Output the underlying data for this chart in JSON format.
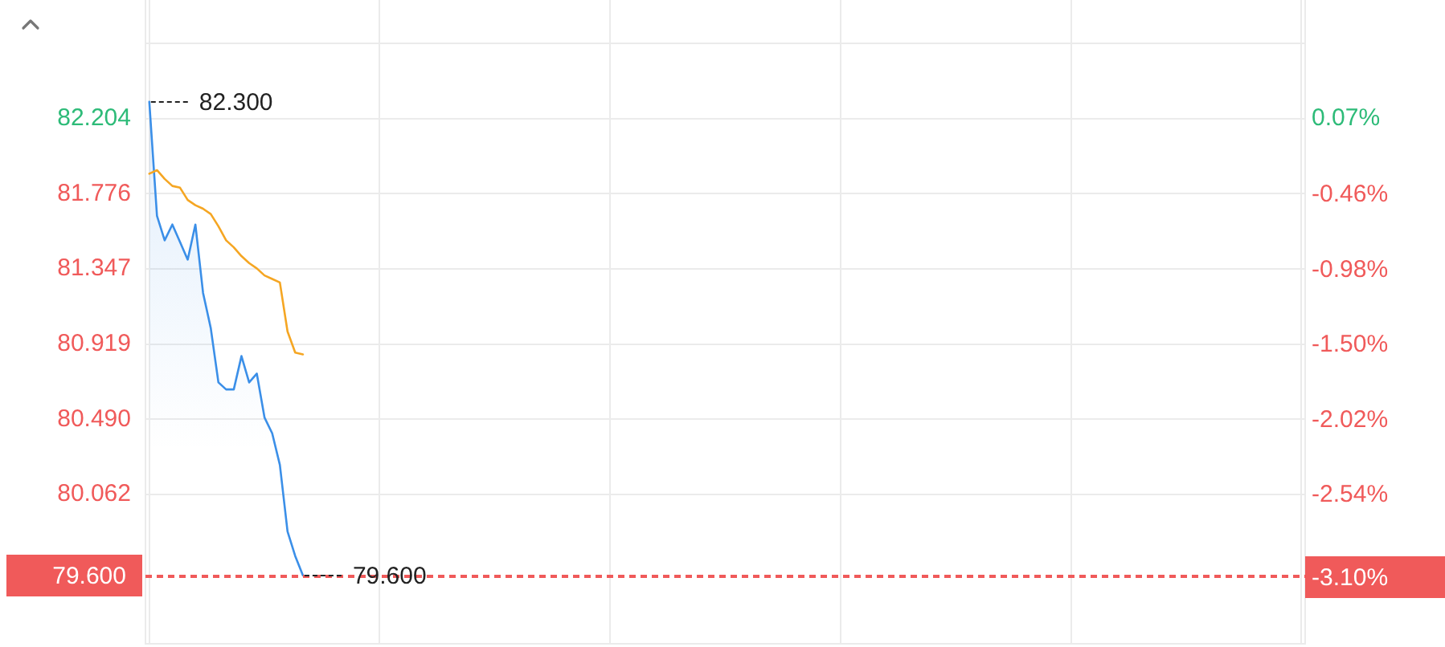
{
  "chart_data": {
    "type": "line",
    "categories": [
      null,
      null,
      null,
      null,
      null,
      null,
      null,
      null,
      null,
      null,
      null,
      null,
      null,
      null,
      null,
      null,
      null,
      null,
      null,
      null,
      null,
      null,
      null,
      null,
      null,
      null,
      null,
      null,
      null,
      null,
      null,
      null,
      null,
      null,
      null,
      null,
      null,
      null,
      null,
      null,
      null,
      null,
      null,
      null,
      null,
      null,
      null,
      null,
      null,
      null,
      null,
      null,
      null,
      null,
      null,
      null,
      null,
      null,
      null,
      null,
      null,
      null,
      null,
      null,
      null,
      null,
      null,
      null,
      null,
      null,
      null,
      null,
      null,
      null,
      null,
      null,
      null,
      null,
      null,
      null,
      null,
      null,
      null,
      null,
      null,
      null,
      null,
      null,
      null,
      null,
      null,
      null,
      null,
      null,
      null,
      null,
      null,
      null,
      null,
      null,
      null,
      null,
      null,
      null,
      null,
      null,
      null,
      null,
      null,
      null,
      null,
      null,
      null,
      null,
      null,
      null,
      null,
      null,
      null,
      null,
      null,
      null,
      null,
      null,
      null,
      null,
      null,
      null,
      null,
      null,
      null,
      null,
      null,
      null,
      null,
      null,
      null,
      null,
      null,
      null,
      null,
      null,
      null,
      null,
      null,
      null,
      null,
      null,
      null,
      null,
      null
    ],
    "series": [
      {
        "type": "area",
        "color": "#3b8fe8",
        "values": [
          82.3,
          81.65,
          81.51,
          81.6,
          81.5,
          81.4,
          81.6,
          81.21,
          81.01,
          80.7,
          80.66,
          80.66,
          80.85,
          80.7,
          80.75,
          80.5,
          80.41,
          80.23,
          79.85,
          79.71,
          79.6,
          null,
          null,
          null,
          null,
          null,
          null,
          null,
          null,
          null,
          null,
          null,
          null,
          null,
          null,
          null,
          null,
          null,
          null,
          null,
          null,
          null,
          null,
          null,
          null,
          null,
          null,
          null,
          null,
          null,
          null,
          null,
          null,
          null,
          null,
          null,
          null,
          null,
          null,
          null,
          null,
          null,
          null,
          null,
          null,
          null,
          null,
          null,
          null,
          null,
          null,
          null,
          null,
          null,
          null,
          null,
          null,
          null,
          null,
          null,
          null,
          null,
          null,
          null,
          null,
          null,
          null,
          null,
          null,
          null,
          null,
          null,
          null,
          null,
          null,
          null,
          null,
          null,
          null,
          null,
          null,
          null,
          null,
          null,
          null,
          null,
          null,
          null,
          null,
          null,
          null,
          null,
          null,
          null,
          null,
          null,
          null,
          null,
          null,
          null,
          null,
          null,
          null,
          null,
          null,
          null,
          null,
          null,
          null,
          null,
          null,
          null,
          null,
          null,
          null,
          null,
          null,
          null,
          null,
          null,
          null,
          null,
          null,
          null,
          null,
          null,
          null,
          null,
          null,
          null,
          null
        ],
        "value_labels": [
          "82.300",
          null,
          null,
          null,
          null,
          null,
          null,
          null,
          null,
          null,
          null,
          null,
          null,
          null,
          null,
          null,
          null,
          null,
          null,
          null,
          "79.600",
          null,
          null,
          null,
          null,
          null,
          null,
          null,
          null,
          null,
          null,
          null,
          null,
          null,
          null,
          null,
          null,
          null,
          null,
          null,
          null,
          null,
          null,
          null,
          null,
          null,
          null,
          null,
          null,
          null,
          null,
          null,
          null,
          null,
          null,
          null,
          null,
          null,
          null,
          null,
          null,
          null,
          null,
          null,
          null,
          null,
          null,
          null,
          null,
          null,
          null,
          null,
          null,
          null,
          null,
          null,
          null,
          null,
          null,
          null,
          null,
          null,
          null,
          null,
          null,
          null,
          null,
          null,
          null,
          null,
          null,
          null,
          null,
          null,
          null,
          null,
          null,
          null,
          null,
          null,
          null,
          null,
          null,
          null,
          null,
          null,
          null,
          null,
          null,
          null,
          null,
          null,
          null,
          null,
          null,
          null,
          null,
          null,
          null,
          null,
          null,
          null,
          null,
          null,
          null,
          null,
          null,
          null,
          null,
          null,
          null,
          null,
          null,
          null,
          null,
          null,
          null,
          null,
          null,
          null,
          null,
          null,
          null,
          null,
          null,
          null,
          null,
          null,
          null,
          null,
          null
        ]
      },
      {
        "color": "#f5a623",
        "values": [
          81.89,
          81.91,
          81.86,
          81.82,
          81.81,
          81.74,
          81.71,
          81.69,
          81.66,
          81.59,
          81.51,
          81.47,
          81.42,
          81.38,
          81.35,
          81.31,
          81.29,
          81.27,
          80.99,
          80.87,
          80.86,
          null,
          null,
          null,
          null,
          null,
          null,
          null,
          null,
          null,
          null,
          null,
          null,
          null,
          null,
          null,
          null,
          null,
          null,
          null,
          null,
          null,
          null,
          null,
          null,
          null,
          null,
          null,
          null,
          null,
          null,
          null,
          null,
          null,
          null,
          null,
          null,
          null,
          null,
          null,
          null,
          null,
          null,
          null,
          null,
          null,
          null,
          null,
          null,
          null,
          null,
          null,
          null,
          null,
          null,
          null,
          null,
          null,
          null,
          null,
          null,
          null,
          null,
          null,
          null,
          null,
          null,
          null,
          null,
          null,
          null,
          null,
          null,
          null,
          null,
          null,
          null,
          null,
          null,
          null,
          null,
          null,
          null,
          null,
          null,
          null,
          null,
          null,
          null,
          null,
          null,
          null,
          null,
          null,
          null,
          null,
          null,
          null,
          null,
          null,
          null,
          null,
          null,
          null,
          null,
          null,
          null,
          null,
          null,
          null,
          null,
          null,
          null,
          null,
          null,
          null,
          null,
          null,
          null,
          null,
          null,
          null,
          null,
          null,
          null,
          null,
          null,
          null,
          null,
          null,
          null
        ]
      }
    ],
    "ylim": [
      79.21,
      82.88
    ],
    "yticks": [
      {
        "value": 82.633,
        "label": null
      },
      82.204,
      81.776,
      81.347,
      80.919,
      {
        "value": 80.49,
        "label": "80.490"
      },
      80.062
    ],
    "y2lim": [
      -3.57,
      0.89
    ],
    "y2ticks": [
      {
        "value": 0.07,
        "label": "0.07%"
      },
      {
        "value": -0.46,
        "label": "-0.46%"
      },
      {
        "value": -0.98,
        "label": "-0.98%"
      },
      {
        "value": -1.5,
        "label": "-1.50%"
      },
      {
        "value": -2.02,
        "label": "-2.02%"
      },
      {
        "value": -2.54,
        "label": "-2.54%"
      }
    ],
    "ref_lines": [
      {
        "axis": "y",
        "value": 79.6,
        "label": "79.600",
        "color": "#f05a5a",
        "line_style": "dashed"
      },
      {
        "axis": "y2",
        "value": -3.1,
        "label": "-3.10%",
        "color": "#f05a5a",
        "line_style": "dashed"
      }
    ],
    "grid": true,
    "legend": false,
    "marker": "none",
    "tick_labels": "y"
  }
}
